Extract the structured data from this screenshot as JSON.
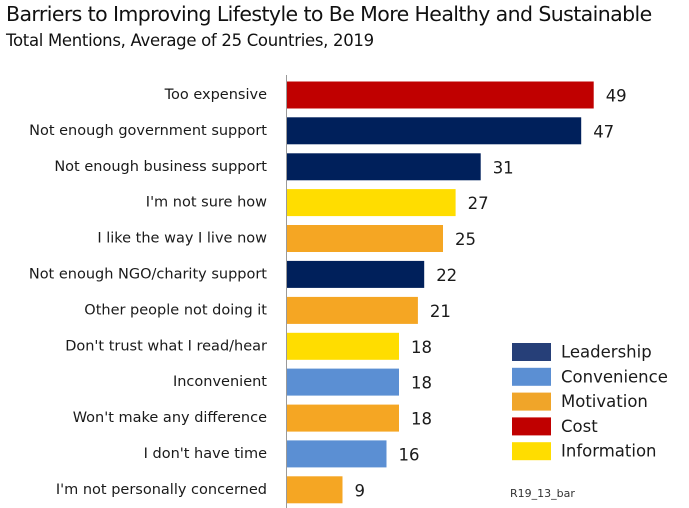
{
  "chart_data": {
    "type": "bar",
    "orientation": "horizontal",
    "title": "Barriers to Improving Lifestyle to Be More Healthy and Sustainable",
    "subtitle": "Total Mentions, Average of 25 Countries, 2019",
    "categories": [
      "Too expensive",
      "Not enough government support",
      "Not enough business support",
      "I'm not sure how",
      "I like the way I live now",
      "Not enough NGO/charity support",
      "Other people not doing it",
      "Don't trust what I read/hear",
      "Inconvenient",
      "Won't make any difference",
      "I don't have time",
      "I'm not personally concerned"
    ],
    "values": [
      49,
      47,
      31,
      27,
      25,
      22,
      21,
      18,
      18,
      18,
      16,
      9
    ],
    "groups": [
      "Cost",
      "Leadership",
      "Leadership",
      "Information",
      "Motivation",
      "Leadership",
      "Motivation",
      "Information",
      "Convenience",
      "Motivation",
      "Convenience",
      "Motivation"
    ],
    "xlim": [
      0,
      54
    ],
    "grid": false,
    "legend": {
      "position": "bottom-right",
      "entries": [
        {
          "name": "Leadership",
          "color": "#263f78"
        },
        {
          "name": "Convenience",
          "color": "#5b8fd3"
        },
        {
          "name": "Motivation",
          "color": "#f0a529"
        },
        {
          "name": "Cost",
          "color": "#c00000"
        },
        {
          "name": "Information",
          "color": "#ffdd00"
        }
      ]
    },
    "bar_colors": {
      "Leadership": "#00205b",
      "Convenience": "#5b8fd3",
      "Motivation": "#f5a623",
      "Cost": "#c00000",
      "Information": "#ffdd00"
    },
    "axis_color": "#9a9a9a",
    "source_code": "R19_13_bar"
  }
}
